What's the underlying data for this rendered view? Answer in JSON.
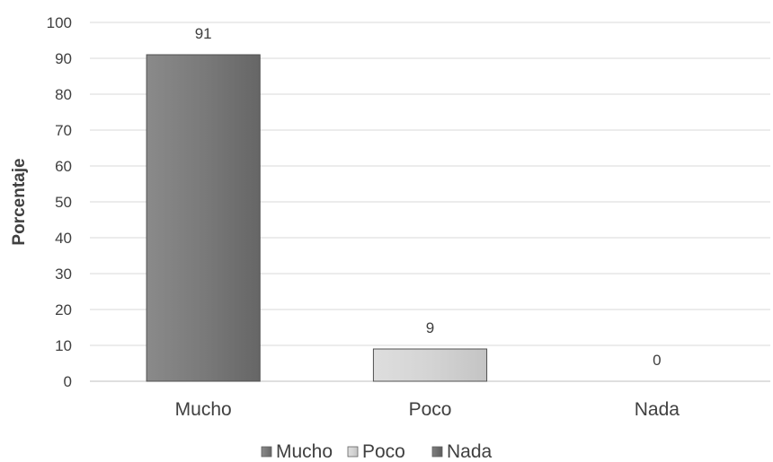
{
  "chart_data": {
    "type": "bar",
    "categories": [
      "Mucho",
      "Poco",
      "Nada"
    ],
    "values": [
      91,
      9,
      0
    ],
    "data_labels": [
      "91",
      "9",
      "0"
    ],
    "xlabel": "",
    "ylabel": "Porcentaje",
    "ylim": [
      0,
      100
    ],
    "yticks": [
      0,
      10,
      20,
      30,
      40,
      50,
      60,
      70,
      80,
      90,
      100
    ],
    "grid": true,
    "legend": {
      "placement": "bottom",
      "entries": [
        "Mucho",
        "Poco",
        "Nada"
      ]
    },
    "colors": {
      "Mucho": "#7a7a7a",
      "Poco": "#d4d4d4",
      "Nada": "#6e6e6e",
      "gridline": "#d9d9d9",
      "text": "#404040"
    }
  }
}
